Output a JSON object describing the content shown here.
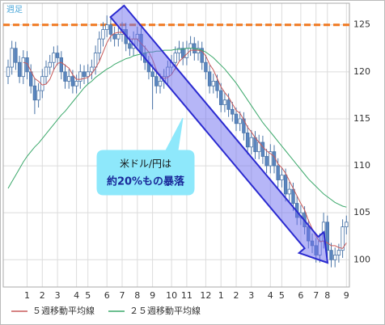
{
  "chart_data": {
    "type": "candlestick",
    "period_label": "週足",
    "categories": [
      null,
      null,
      null,
      null,
      null,
      "1",
      null,
      null,
      null,
      "2",
      null,
      null,
      null,
      "3",
      null,
      null,
      null,
      null,
      "4",
      null,
      null,
      "5",
      null,
      null,
      null,
      null,
      "6",
      null,
      null,
      null,
      "7",
      null,
      null,
      null,
      "8",
      null,
      null,
      null,
      "9",
      null,
      null,
      null,
      null,
      "10",
      null,
      null,
      null,
      "11",
      null,
      null,
      null,
      null,
      "12",
      null,
      null,
      null,
      "1",
      null,
      null,
      null,
      "2",
      null,
      null,
      null,
      "3",
      null,
      null,
      null,
      null,
      "4",
      null,
      null,
      "5",
      null,
      null,
      null,
      null,
      "6",
      null,
      null,
      null,
      "7",
      null,
      null,
      "8",
      null,
      null,
      null,
      null,
      "9"
    ],
    "open": [
      119.5,
      120.5,
      122.5,
      121,
      119.5,
      121.5,
      120,
      118.5,
      117,
      118,
      119.5,
      120.5,
      121,
      122,
      121.5,
      120,
      119,
      119.5,
      118.5,
      119,
      120,
      119.5,
      120,
      120.5,
      122,
      123.5,
      124.5,
      125,
      124,
      123.5,
      124,
      124.5,
      123,
      122.5,
      123.5,
      124,
      122,
      121,
      120,
      119.5,
      118.5,
      119,
      119.5,
      120.5,
      121,
      122,
      122.5,
      121.5,
      122.5,
      123,
      122,
      122.5,
      121,
      120,
      118.5,
      119,
      118,
      116.5,
      117,
      116,
      115.5,
      114.5,
      115,
      113.5,
      112,
      113,
      111.5,
      112.5,
      111,
      110,
      111.5,
      110,
      108.5,
      109,
      107,
      107.5,
      106,
      104.5,
      105,
      103.5,
      102,
      101.5,
      100.5,
      102,
      104,
      101,
      100,
      100.5,
      101,
      103.5
    ],
    "high": [
      121.3,
      123.3,
      123.2,
      121.7,
      122.3,
      122.2,
      120.8,
      119.3,
      118.8,
      120.3,
      121.2,
      121.8,
      122.7,
      122.8,
      122.2,
      120.8,
      120.3,
      120.2,
      119.7,
      120.8,
      120.7,
      120.8,
      121.3,
      122.8,
      124.3,
      125.3,
      126,
      125.7,
      124.8,
      124.7,
      125.3,
      125.2,
      123.8,
      124.3,
      124.8,
      124.7,
      122.8,
      121.7,
      120.8,
      120.3,
      119.8,
      120.3,
      121.2,
      121.8,
      122.7,
      123.3,
      123.2,
      123.3,
      123.8,
      123.7,
      123.3,
      123.2,
      121.8,
      120.7,
      119.8,
      119.7,
      118.8,
      117.8,
      117.7,
      116.8,
      116.2,
      115.8,
      115.7,
      114.3,
      113.8,
      113.7,
      113.3,
      113.2,
      111.8,
      112.3,
      112.2,
      110.8,
      109.8,
      109.7,
      108.3,
      108.2,
      106.8,
      105.8,
      105.7,
      104.3,
      102.8,
      102.3,
      102.8,
      105,
      104.7,
      101.8,
      101.3,
      101.7,
      104.3,
      104.7
    ],
    "low": [
      118.7,
      119.7,
      120.2,
      118.8,
      118.7,
      119.2,
      117.7,
      115.5,
      116.2,
      117.2,
      118.7,
      119.7,
      120.2,
      120.7,
      119.2,
      118.2,
      118.2,
      117.7,
      117.7,
      118.2,
      118.7,
      118.7,
      119.2,
      119.7,
      121.2,
      122.7,
      123.7,
      123.2,
      122.7,
      122.7,
      123.2,
      122.2,
      121.7,
      121.7,
      122.7,
      121.2,
      120.2,
      119.2,
      116,
      117.7,
      117.7,
      118.2,
      118.7,
      119.7,
      120.2,
      121.2,
      120.7,
      120.7,
      121.7,
      121.2,
      121.2,
      120.2,
      119.2,
      117.7,
      117.7,
      117.2,
      115.7,
      115.7,
      115.2,
      114.7,
      113.7,
      113.7,
      112.7,
      111.2,
      111.2,
      110.7,
      110.7,
      110.2,
      109.2,
      109.2,
      109.2,
      107.7,
      107.7,
      106.2,
      106.2,
      105.2,
      103.7,
      103.7,
      102.7,
      101.2,
      100.7,
      99.7,
      99.7,
      101.2,
      100.2,
      99.2,
      99.2,
      99.7,
      100.2,
      102.7
    ],
    "close": [
      120.5,
      122.5,
      121,
      119.5,
      121.5,
      120,
      118.5,
      117,
      118,
      119.5,
      120.5,
      121,
      122,
      121.5,
      120,
      119,
      119.5,
      118.5,
      119,
      120,
      119.5,
      120,
      120.5,
      122,
      123.5,
      124.5,
      125,
      124,
      123.5,
      124,
      124.5,
      123,
      122.5,
      123.5,
      124,
      122,
      121,
      120,
      119.5,
      118.5,
      119,
      119.5,
      120.5,
      121,
      122,
      122.5,
      121.5,
      122.5,
      123,
      122,
      122.5,
      121,
      120,
      118.5,
      119,
      118,
      116.5,
      117,
      116,
      115.5,
      114.5,
      115,
      113.5,
      112,
      113,
      111.5,
      112.5,
      111,
      110,
      111.5,
      110,
      108.5,
      109,
      107,
      107.5,
      106,
      104.5,
      105,
      103.5,
      102,
      101.5,
      100.5,
      102,
      104,
      101,
      100,
      100.5,
      101,
      103.5,
      104
    ],
    "up_color": "#ffffff",
    "down_color": "#5b86bf",
    "candle_border": "#4a74a8",
    "series": [
      {
        "name": "５週移動平均線",
        "color": "#c85a5a",
        "values": [
          null,
          null,
          null,
          null,
          121,
          120.9,
          120.1,
          119.3,
          119,
          118.6,
          118.7,
          119.2,
          120.2,
          120.9,
          121,
          120.7,
          120.4,
          119.7,
          119.2,
          119.2,
          119.3,
          119.4,
          119.8,
          120.4,
          121.1,
          122.1,
          123.1,
          123.8,
          124.1,
          124.2,
          124.2,
          123.8,
          123.5,
          123.5,
          123.5,
          123,
          122.6,
          122.1,
          121.3,
          120.2,
          119.6,
          119.3,
          119.4,
          119.7,
          120.4,
          121.1,
          121.5,
          121.9,
          122.3,
          122.3,
          122.3,
          122.2,
          121.7,
          120.8,
          120.2,
          119.3,
          118.4,
          117.8,
          117.3,
          116.6,
          115.9,
          115.6,
          114.9,
          114.1,
          113.6,
          113,
          112.5,
          112,
          111.6,
          111.3,
          111,
          110.2,
          109.8,
          109.2,
          108.4,
          107.6,
          106.8,
          106,
          105.3,
          104.2,
          103.3,
          102.5,
          101.9,
          102,
          101.8,
          101.5,
          101.5,
          101.3,
          101.2,
          101.8
        ]
      },
      {
        "name": "２５週移動平均線",
        "color": "#3aa86a",
        "values": [
          107.6,
          108.3,
          109,
          109.7,
          110.4,
          111,
          111.5,
          112,
          112.4,
          112.9,
          113.4,
          113.9,
          114.4,
          114.9,
          115.4,
          115.8,
          116.3,
          116.8,
          117.3,
          117.8,
          118.3,
          118.7,
          119,
          119.4,
          119.7,
          120,
          120.3,
          120.5,
          120.8,
          121,
          121.2,
          121.4,
          121.5,
          121.7,
          121.8,
          121.9,
          122,
          122.1,
          122.1,
          122.2,
          122.2,
          122.3,
          122.3,
          122.3,
          122.4,
          122.4,
          122.4,
          122.5,
          122.5,
          122.5,
          122.4,
          122.3,
          122.1,
          121.8,
          121.5,
          121.1,
          120.7,
          120.3,
          119.8,
          119.3,
          118.8,
          118.2,
          117.6,
          117,
          116.4,
          115.8,
          115.2,
          114.6,
          114.1,
          113.6,
          113.1,
          112.6,
          112.1,
          111.6,
          111.1,
          110.6,
          110.1,
          109.6,
          109.1,
          108.6,
          108.2,
          107.8,
          107.4,
          107,
          106.7,
          106.4,
          106.1,
          105.9,
          105.7,
          105.6
        ]
      }
    ],
    "reference_line": {
      "value": 125,
      "color": "#f07820"
    },
    "annotations": [
      "米ドル/円は",
      "約20%もの暴落"
    ],
    "ylim": [
      97.1,
      127.3
    ],
    "yticks": [
      100,
      105,
      110,
      115,
      120,
      125
    ],
    "grid": true
  }
}
